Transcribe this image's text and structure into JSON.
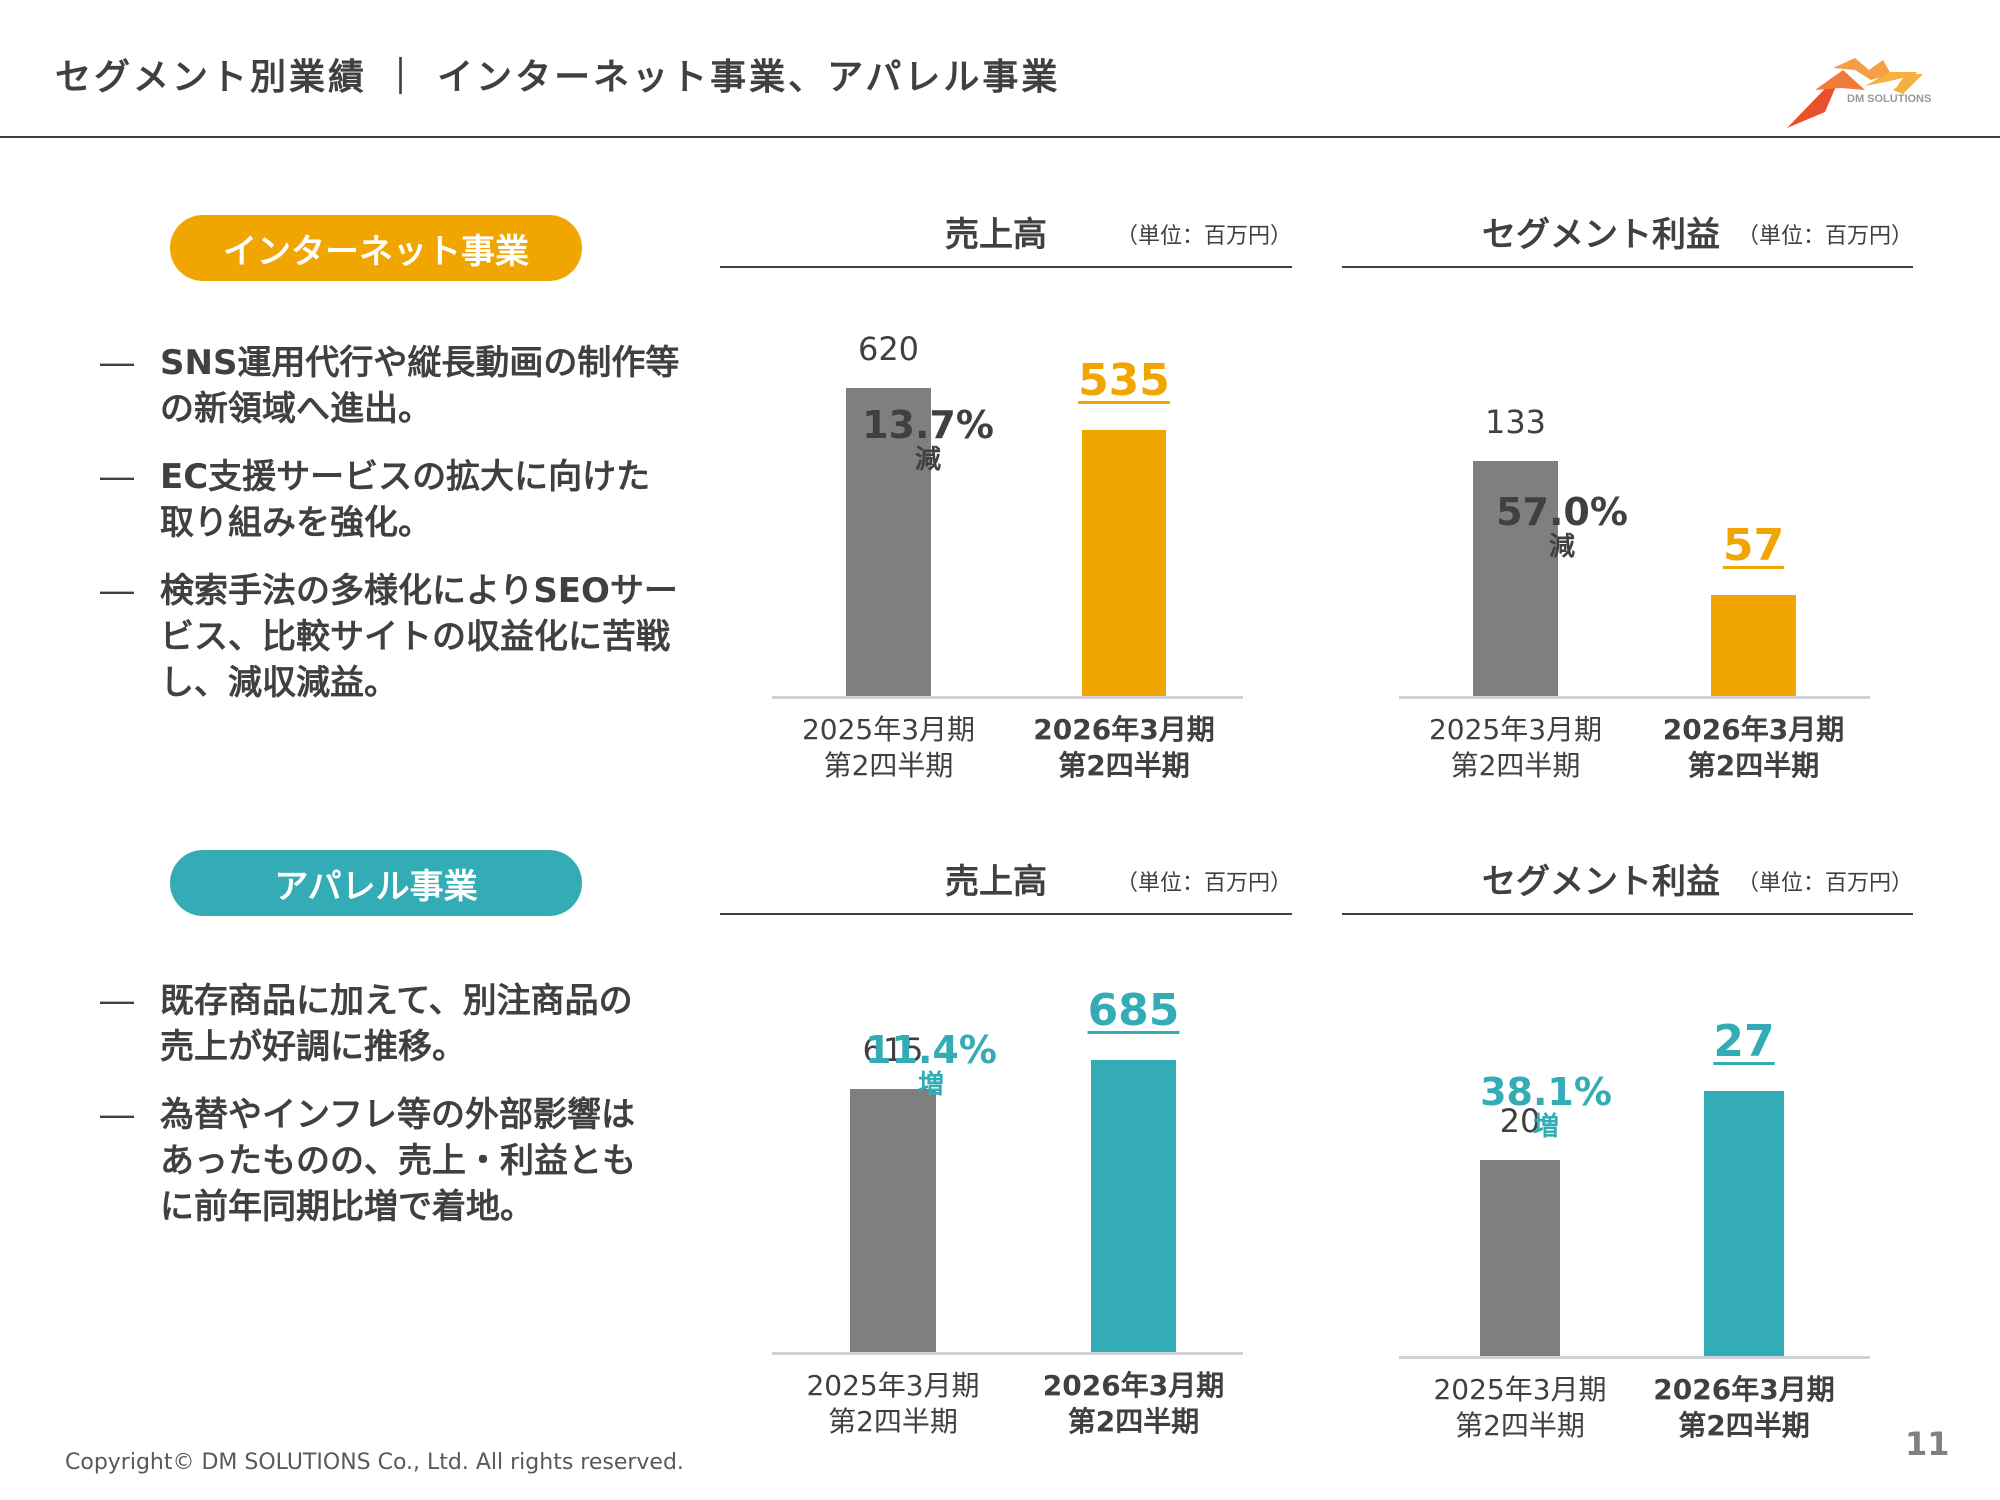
{
  "header": {
    "title": "セグメント別業績 ｜ インターネット事業、アパレル事業",
    "logo_text": "DM SOLUTIONS"
  },
  "colors": {
    "internet": "#F0A500",
    "apparel": "#33ACB5",
    "prior": "#7F7F7F",
    "text": "#404040"
  },
  "segments": [
    {
      "name": "インターネット事業",
      "bullets": [
        "SNS運用代行や縦長動画の制作等の新領域へ進出。",
        "EC支援サービスの拡大に向けた取り組みを強化。",
        "検索手法の多様化によりSEOサービス、比較サイトの収益化に苦戦し、減収減益。"
      ]
    },
    {
      "name": "アパレル事業",
      "bullets": [
        "既存商品に加えて、別注商品の売上が好調に推移。",
        "為替やインフレ等の外部影響はあったものの、売上・利益ともに前年同期比増で着地。"
      ]
    }
  ],
  "chart_common": {
    "unit": "（単位：百万円）",
    "bullet_dash": "―",
    "categories": [
      {
        "line1": "2025年3月期",
        "line2": "第2四半期"
      },
      {
        "line1": "2026年3月期",
        "line2": "第2四半期"
      }
    ]
  },
  "chart_data": [
    {
      "type": "bar",
      "title": "売上高",
      "segment": "インターネット事業",
      "unit": "百万円",
      "categories": [
        "2025年3月期 第2四半期",
        "2026年3月期 第2四半期"
      ],
      "values": [
        620,
        535
      ],
      "change": {
        "pct": "13.7%",
        "dir": "減"
      },
      "ylim": [
        0,
        700
      ]
    },
    {
      "type": "bar",
      "title": "セグメント利益",
      "segment": "インターネット事業",
      "unit": "百万円",
      "categories": [
        "2025年3月期 第2四半期",
        "2026年3月期 第2四半期"
      ],
      "values": [
        133,
        57
      ],
      "change": {
        "pct": "57.0%",
        "dir": "減"
      },
      "ylim": [
        0,
        162
      ]
    },
    {
      "type": "bar",
      "title": "売上高",
      "segment": "アパレル事業",
      "unit": "百万円",
      "categories": [
        "2025年3月期 第2四半期",
        "2026年3月期 第2四半期"
      ],
      "values": [
        615,
        685
      ],
      "change": {
        "pct": "11.4%",
        "dir": "増"
      },
      "ylim": [
        0,
        820
      ]
    },
    {
      "type": "bar",
      "title": "セグメント利益",
      "segment": "アパレル事業",
      "unit": "百万円",
      "categories": [
        "2025年3月期 第2四半期",
        "2026年3月期 第2四半期"
      ],
      "values": [
        20,
        27
      ],
      "change": {
        "pct": "38.1%",
        "dir": "増"
      },
      "ylim": [
        0,
        28.5
      ]
    }
  ],
  "footer": {
    "copyright": "Copyright© DM SOLUTIONS Co., Ltd. All rights reserved.",
    "page_number": "11"
  }
}
